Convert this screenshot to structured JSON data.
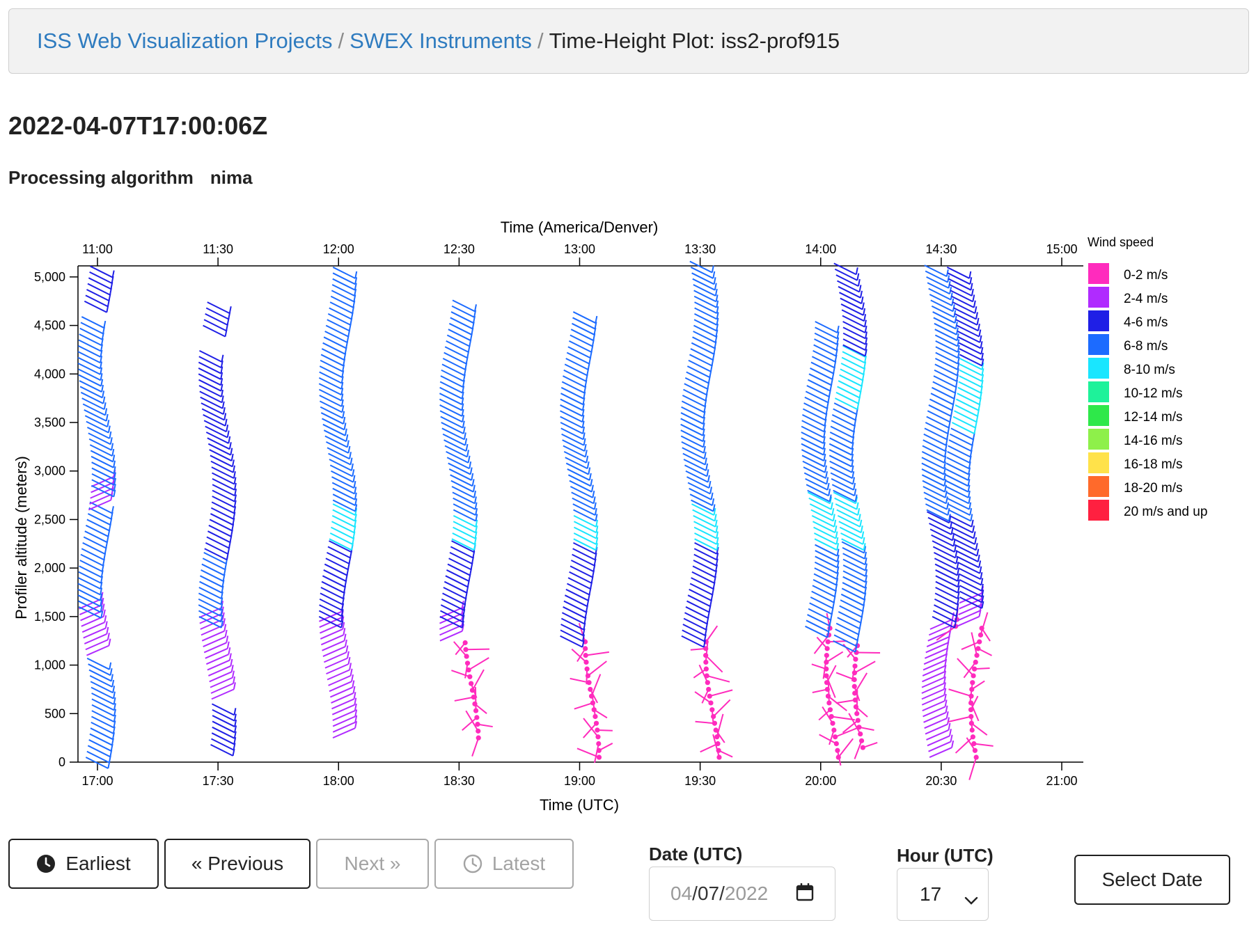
{
  "breadcrumb": {
    "item1": "ISS Web Visualization Projects",
    "item2": "SWEX Instruments",
    "current": "Time-Height Plot: iss2-prof915",
    "separator": "/"
  },
  "page": {
    "title": "2022-04-07T17:00:06Z",
    "algorithm_label": "Processing algorithm",
    "algorithm_value": "nima"
  },
  "chart_data": {
    "type": "wind-barb time-height",
    "top_axis_label": "Time (America/Denver)",
    "top_ticks": [
      "11:00",
      "11:30",
      "12:00",
      "12:30",
      "13:00",
      "13:30",
      "14:00",
      "14:30",
      "15:00"
    ],
    "x_label": "Time (UTC)",
    "x_ticks": [
      "17:00",
      "17:30",
      "18:00",
      "18:30",
      "19:00",
      "19:30",
      "20:00",
      "20:30",
      "21:00"
    ],
    "x_range_minutes": [
      0,
      240
    ],
    "y_label": "Profiler altitude (meters)",
    "y_ticks": [
      "0",
      "500",
      "1,000",
      "1,500",
      "2,000",
      "2,500",
      "3,000",
      "3,500",
      "4,000",
      "4,500",
      "5,000"
    ],
    "y_range_m": [
      0,
      5200
    ],
    "legend_title": "Wind speed",
    "legend": [
      {
        "label": "0-2 m/s",
        "color": "#ff2bbd"
      },
      {
        "label": "2-4 m/s",
        "color": "#b02bff"
      },
      {
        "label": "4-6 m/s",
        "color": "#1f1fe6"
      },
      {
        "label": "6-8 m/s",
        "color": "#1c6bff"
      },
      {
        "label": "8-10 m/s",
        "color": "#19e6ff"
      },
      {
        "label": "10-12 m/s",
        "color": "#1ef29a"
      },
      {
        "label": "12-14 m/s",
        "color": "#2ee84a"
      },
      {
        "label": "14-16 m/s",
        "color": "#8ef04a"
      },
      {
        "label": "16-18 m/s",
        "color": "#ffe24a"
      },
      {
        "label": "18-20 m/s",
        "color": "#ff6a2b"
      },
      {
        "label": "20 m/s and up",
        "color": "#ff2040"
      }
    ],
    "profiles": [
      {
        "minute": 0,
        "segments": [
          {
            "from": 50,
            "to": 1100,
            "speed_class": "6-8 m/s"
          },
          {
            "from": 1100,
            "to": 1600,
            "speed_class": "2-4 m/s"
          },
          {
            "from": 1600,
            "to": 2700,
            "speed_class": "6-8 m/s"
          },
          {
            "from": 2600,
            "to": 2850,
            "speed_class": "2-4 m/s"
          },
          {
            "from": 2850,
            "to": 4650,
            "speed_class": "6-8 m/s"
          },
          {
            "from": 4750,
            "to": 5150,
            "speed_class": "4-6 m/s"
          }
        ]
      },
      {
        "minute": 30,
        "segments": [
          {
            "from": 180,
            "to": 650,
            "speed_class": "4-6 m/s"
          },
          {
            "from": 650,
            "to": 1500,
            "speed_class": "2-4 m/s"
          },
          {
            "from": 1500,
            "to": 2200,
            "speed_class": "6-8 m/s"
          },
          {
            "from": 2200,
            "to": 4300,
            "speed_class": "4-6 m/s"
          },
          {
            "from": 4500,
            "to": 4800,
            "speed_class": "4-6 m/s"
          }
        ]
      },
      {
        "minute": 60,
        "segments": [
          {
            "from": 250,
            "to": 1500,
            "speed_class": "2-4 m/s"
          },
          {
            "from": 1500,
            "to": 2300,
            "speed_class": "4-6 m/s"
          },
          {
            "from": 2300,
            "to": 2700,
            "speed_class": "8-10 m/s"
          },
          {
            "from": 2700,
            "to": 5150,
            "speed_class": "6-8 m/s"
          }
        ]
      },
      {
        "minute": 90,
        "segments": [
          {
            "from": 250,
            "to": 1250,
            "speed_class": "0-2 m/s"
          },
          {
            "from": 1250,
            "to": 1500,
            "speed_class": "2-4 m/s"
          },
          {
            "from": 1500,
            "to": 2300,
            "speed_class": "4-6 m/s"
          },
          {
            "from": 2300,
            "to": 2600,
            "speed_class": "8-10 m/s"
          },
          {
            "from": 2600,
            "to": 4800,
            "speed_class": "6-8 m/s"
          }
        ]
      },
      {
        "minute": 120,
        "segments": [
          {
            "from": 50,
            "to": 1300,
            "speed_class": "0-2 m/s"
          },
          {
            "from": 1300,
            "to": 2300,
            "speed_class": "4-6 m/s"
          },
          {
            "from": 2300,
            "to": 2600,
            "speed_class": "8-10 m/s"
          },
          {
            "from": 2600,
            "to": 4650,
            "speed_class": "6-8 m/s"
          }
        ]
      },
      {
        "minute": 150,
        "segments": [
          {
            "from": 50,
            "to": 1300,
            "speed_class": "0-2 m/s"
          },
          {
            "from": 1300,
            "to": 2300,
            "speed_class": "4-6 m/s"
          },
          {
            "from": 2300,
            "to": 2700,
            "speed_class": "8-10 m/s"
          },
          {
            "from": 2700,
            "to": 5200,
            "speed_class": "6-8 m/s"
          }
        ]
      },
      {
        "minute": 180,
        "segments": [
          {
            "from": 50,
            "to": 1400,
            "speed_class": "0-2 m/s"
          },
          {
            "from": 1400,
            "to": 2300,
            "speed_class": "6-8 m/s"
          },
          {
            "from": 2300,
            "to": 2800,
            "speed_class": "8-10 m/s"
          },
          {
            "from": 2800,
            "to": 4550,
            "speed_class": "6-8 m/s"
          }
        ]
      },
      {
        "minute": 187,
        "segments": [
          {
            "from": 150,
            "to": 1250,
            "speed_class": "0-2 m/s"
          },
          {
            "from": 1250,
            "to": 2300,
            "speed_class": "6-8 m/s"
          },
          {
            "from": 2300,
            "to": 2800,
            "speed_class": "8-10 m/s"
          },
          {
            "from": 2800,
            "to": 3750,
            "speed_class": "6-8 m/s"
          },
          {
            "from": 3750,
            "to": 4300,
            "speed_class": "8-10 m/s"
          },
          {
            "from": 4300,
            "to": 5150,
            "speed_class": "4-6 m/s"
          }
        ]
      },
      {
        "minute": 210,
        "segments": [
          {
            "from": 50,
            "to": 1400,
            "speed_class": "2-4 m/s"
          },
          {
            "from": 1400,
            "to": 1500,
            "speed_class": "0-2 m/s"
          },
          {
            "from": 1500,
            "to": 2600,
            "speed_class": "4-6 m/s"
          },
          {
            "from": 2600,
            "to": 5150,
            "speed_class": "6-8 m/s"
          }
        ]
      },
      {
        "minute": 216,
        "segments": [
          {
            "from": 50,
            "to": 1400,
            "speed_class": "0-2 m/s"
          },
          {
            "from": 1400,
            "to": 1700,
            "speed_class": "2-4 m/s"
          },
          {
            "from": 1700,
            "to": 2600,
            "speed_class": "4-6 m/s"
          },
          {
            "from": 2600,
            "to": 3500,
            "speed_class": "6-8 m/s"
          },
          {
            "from": 3500,
            "to": 4200,
            "speed_class": "8-10 m/s"
          },
          {
            "from": 4200,
            "to": 5150,
            "speed_class": "4-6 m/s"
          }
        ]
      }
    ]
  },
  "nav": {
    "earliest": "Earliest",
    "previous": "« Previous",
    "next": "Next »",
    "latest": "Latest",
    "date_label": "Date (UTC)",
    "date_mm": "04",
    "date_dd": "07",
    "date_yyyy": "2022",
    "date_sep": "/",
    "hour_label": "Hour (UTC)",
    "hour_value": "17",
    "select_date": "Select Date"
  }
}
